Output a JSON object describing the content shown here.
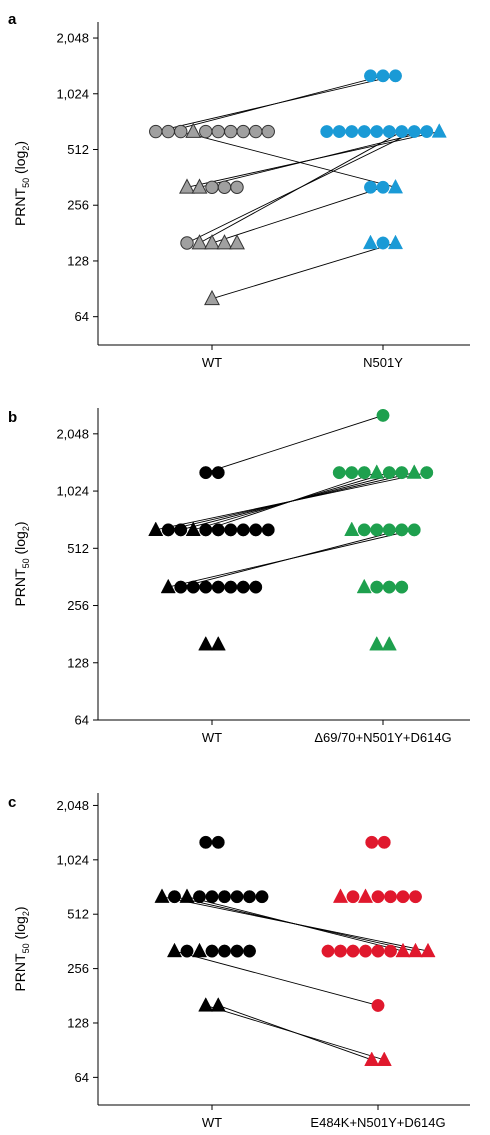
{
  "chart_data": [
    {
      "panel": "a",
      "type": "scatter",
      "ylabel": "PRNT",
      "ylabel_sub": "50",
      "ylabel_rest": " (log",
      "ylabel_sub2": "2",
      "ylabel_end": ")",
      "y_scale": "log2",
      "ylim": [
        45,
        2500
      ],
      "yticks": [
        64,
        128,
        256,
        512,
        1024,
        2048
      ],
      "ytick_labels": [
        "64",
        "128",
        "256",
        "512",
        "1,024",
        "2,048"
      ],
      "categories": [
        "WT",
        "N501Y"
      ],
      "colors": {
        "WT": "#a0a0a0",
        "variant": "#1a9ad6"
      },
      "points": {
        "WT": [
          {
            "y": 640,
            "shape": "circle",
            "count": 3
          },
          {
            "y": 640,
            "shape": "triangle",
            "count": 1
          },
          {
            "y": 640,
            "shape": "circle",
            "count": 6
          },
          {
            "y": 320,
            "shape": "triangle",
            "count": 2
          },
          {
            "y": 320,
            "shape": "circle",
            "count": 3
          },
          {
            "y": 160,
            "shape": "circle",
            "count": 1
          },
          {
            "y": 160,
            "shape": "triangle",
            "count": 4
          },
          {
            "y": 80,
            "shape": "triangle",
            "count": 1
          }
        ],
        "variant": [
          {
            "y": 1280,
            "shape": "circle",
            "count": 3
          },
          {
            "y": 640,
            "shape": "circle",
            "count": 9
          },
          {
            "y": 640,
            "shape": "triangle",
            "count": 1
          },
          {
            "y": 320,
            "shape": "circle",
            "count": 2
          },
          {
            "y": 320,
            "shape": "triangle",
            "count": 1
          },
          {
            "y": 160,
            "shape": "triangle",
            "count": 1
          },
          {
            "y": 160,
            "shape": "circle",
            "count": 1
          },
          {
            "y": 160,
            "shape": "triangle",
            "count": 1
          }
        ]
      },
      "pairs": [
        [
          640,
          1280
        ],
        [
          640,
          1280
        ],
        [
          640,
          320
        ],
        [
          320,
          640
        ],
        [
          320,
          640
        ],
        [
          160,
          640
        ],
        [
          160,
          640
        ],
        [
          160,
          320
        ],
        [
          80,
          160
        ]
      ]
    },
    {
      "panel": "b",
      "type": "scatter",
      "ylabel": "PRNT",
      "ylabel_sub": "50",
      "ylabel_rest": " (log",
      "ylabel_sub2": "2",
      "ylabel_end": ")",
      "y_scale": "log2",
      "ylim": [
        64,
        2800
      ],
      "yticks": [
        64,
        128,
        256,
        512,
        1024,
        2048
      ],
      "ytick_labels": [
        "64",
        "128",
        "256",
        "512",
        "1,024",
        "2,048"
      ],
      "categories": [
        "WT",
        "Δ69/70+N501Y+D614G"
      ],
      "colors": {
        "WT": "#000000",
        "variant": "#1ea04e"
      },
      "points": {
        "WT": [
          {
            "y": 1280,
            "shape": "circle",
            "count": 2
          },
          {
            "y": 640,
            "shape": "triangle",
            "count": 1
          },
          {
            "y": 640,
            "shape": "circle",
            "count": 2
          },
          {
            "y": 640,
            "shape": "triangle",
            "count": 1
          },
          {
            "y": 640,
            "shape": "circle",
            "count": 6
          },
          {
            "y": 320,
            "shape": "triangle",
            "count": 1
          },
          {
            "y": 320,
            "shape": "circle",
            "count": 7
          },
          {
            "y": 160,
            "shape": "triangle",
            "count": 2
          }
        ],
        "variant": [
          {
            "y": 2560,
            "shape": "circle",
            "count": 1
          },
          {
            "y": 1280,
            "shape": "circle",
            "count": 3
          },
          {
            "y": 1280,
            "shape": "triangle",
            "count": 1
          },
          {
            "y": 1280,
            "shape": "circle",
            "count": 2
          },
          {
            "y": 1280,
            "shape": "triangle",
            "count": 1
          },
          {
            "y": 1280,
            "shape": "circle",
            "count": 1
          },
          {
            "y": 640,
            "shape": "triangle",
            "count": 1
          },
          {
            "y": 640,
            "shape": "circle",
            "count": 5
          },
          {
            "y": 320,
            "shape": "triangle",
            "count": 1
          },
          {
            "y": 320,
            "shape": "circle",
            "count": 3
          },
          {
            "y": 160,
            "shape": "triangle",
            "count": 2
          }
        ]
      },
      "pairs": [
        [
          1280,
          2560
        ],
        [
          640,
          1280
        ],
        [
          640,
          1280
        ],
        [
          640,
          1280
        ],
        [
          640,
          1280
        ],
        [
          640,
          1280
        ],
        [
          320,
          640
        ],
        [
          320,
          640
        ]
      ]
    },
    {
      "panel": "c",
      "type": "scatter",
      "ylabel": "PRNT",
      "ylabel_sub": "50",
      "ylabel_rest": " (log",
      "ylabel_sub2": "2",
      "ylabel_end": ")",
      "y_scale": "log2",
      "ylim": [
        45,
        2400
      ],
      "yticks": [
        64,
        128,
        256,
        512,
        1024,
        2048
      ],
      "ytick_labels": [
        "64",
        "128",
        "256",
        "512",
        "1,024",
        "2,048"
      ],
      "categories": [
        "WT",
        "E484K+N501Y+D614G"
      ],
      "colors": {
        "WT": "#000000",
        "variant": "#e0182d"
      },
      "points": {
        "WT": [
          {
            "y": 1280,
            "shape": "circle",
            "count": 2
          },
          {
            "y": 640,
            "shape": "triangle",
            "count": 1
          },
          {
            "y": 640,
            "shape": "circle",
            "count": 1
          },
          {
            "y": 640,
            "shape": "triangle",
            "count": 1
          },
          {
            "y": 640,
            "shape": "circle",
            "count": 6
          },
          {
            "y": 320,
            "shape": "triangle",
            "count": 1
          },
          {
            "y": 320,
            "shape": "circle",
            "count": 1
          },
          {
            "y": 320,
            "shape": "triangle",
            "count": 1
          },
          {
            "y": 320,
            "shape": "circle",
            "count": 4
          },
          {
            "y": 160,
            "shape": "triangle",
            "count": 2
          }
        ],
        "variant": [
          {
            "y": 1280,
            "shape": "circle",
            "count": 2
          },
          {
            "y": 640,
            "shape": "triangle",
            "count": 1
          },
          {
            "y": 640,
            "shape": "circle",
            "count": 1
          },
          {
            "y": 640,
            "shape": "triangle",
            "count": 1
          },
          {
            "y": 640,
            "shape": "circle",
            "count": 4
          },
          {
            "y": 320,
            "shape": "circle",
            "count": 6
          },
          {
            "y": 320,
            "shape": "triangle",
            "count": 3
          },
          {
            "y": 160,
            "shape": "circle",
            "count": 1
          },
          {
            "y": 80,
            "shape": "triangle",
            "count": 2
          }
        ]
      },
      "pairs": [
        [
          640,
          320
        ],
        [
          640,
          320
        ],
        [
          640,
          320
        ],
        [
          320,
          160
        ],
        [
          160,
          80
        ],
        [
          160,
          80
        ]
      ]
    }
  ]
}
